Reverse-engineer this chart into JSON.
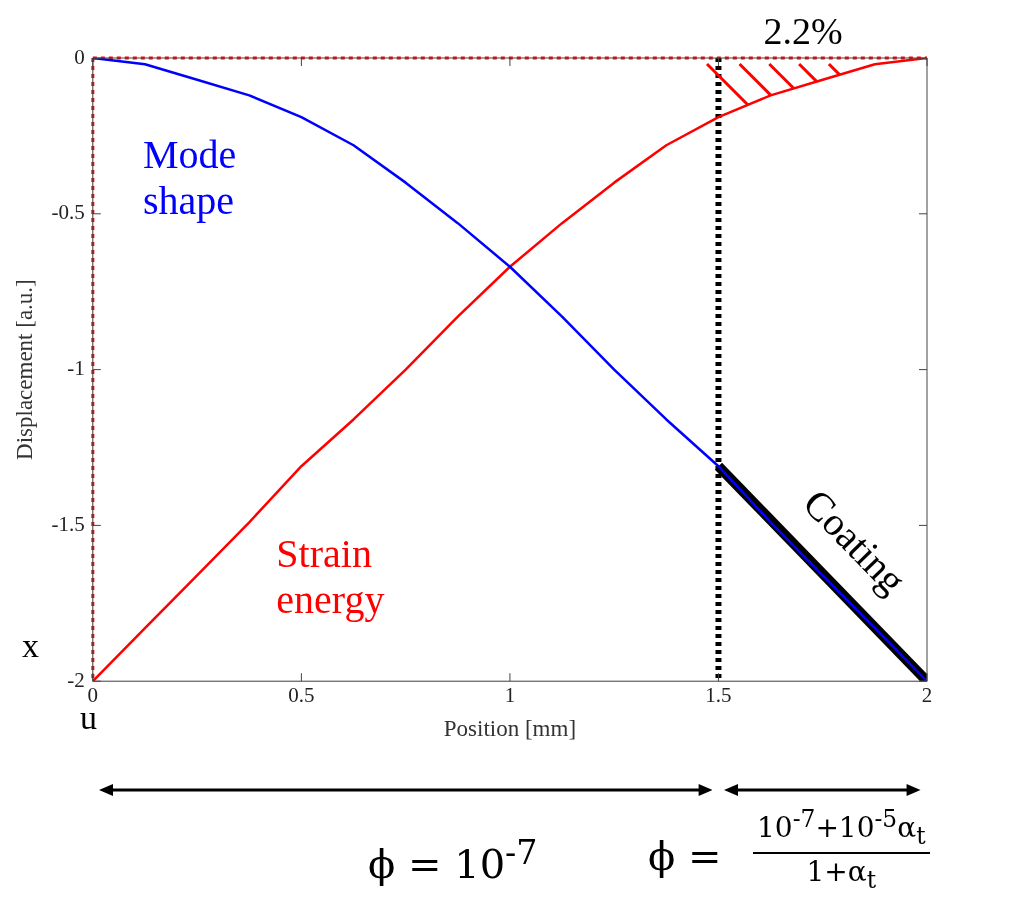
{
  "chart_data": {
    "type": "line",
    "xlabel": "Position [mm]",
    "ylabel": "Displacement [a.u.]",
    "xlim": [
      0,
      2
    ],
    "xticks": [
      0,
      0.5,
      1,
      1.5,
      2
    ],
    "ylim": [
      -2,
      0
    ],
    "yticks": [
      -2,
      -1.5,
      -1,
      -0.5,
      0
    ],
    "grid": false,
    "legend": false,
    "marker": "none",
    "line_style": "solid",
    "series": [
      {
        "name": "Mode shape",
        "color": "#0000ff",
        "x": [
          0,
          0.125,
          0.25,
          0.375,
          0.5,
          0.625,
          0.75,
          0.875,
          1,
          1.125,
          1.25,
          1.375,
          1.5,
          1.625,
          1.75,
          1.875,
          2
        ],
        "values": [
          0,
          -0.02,
          -0.07,
          -0.12,
          -0.19,
          -0.28,
          -0.4,
          -0.53,
          -0.67,
          -0.83,
          -1,
          -1.16,
          -1.31,
          -1.49,
          -1.66,
          -1.83,
          -2
        ]
      },
      {
        "name": "Strain energy",
        "color": "#ff0000",
        "x": [
          0,
          0.125,
          0.25,
          0.375,
          0.5,
          0.625,
          0.75,
          0.875,
          1,
          1.125,
          1.25,
          1.375,
          1.5,
          1.625,
          1.75,
          1.875,
          2
        ],
        "values": [
          -2,
          -1.83,
          -1.66,
          -1.49,
          -1.31,
          -1.16,
          -1,
          -0.83,
          -0.67,
          -0.53,
          -0.4,
          -0.28,
          -0.19,
          -0.12,
          -0.07,
          -0.02,
          0
        ]
      },
      {
        "name": "Coating",
        "color": "#000000",
        "x": [
          1.5,
          2
        ],
        "values": [
          -1.31,
          -2
        ]
      }
    ],
    "ref_lines": [
      {
        "axis": "y",
        "value": 0,
        "color": "#ff0000",
        "line_style": "dotted"
      },
      {
        "axis": "x",
        "value": 0,
        "color": "#ff0000",
        "line_style": "dotted"
      },
      {
        "axis": "x",
        "value": 1.5,
        "color": "#000000",
        "line_style": "dotted"
      }
    ],
    "annotations": [
      "2.2%",
      "x",
      "u",
      "ϕ = 10$^{-7}$",
      "ϕ =",
      "10$^{-7}$+10$^{-5}$α$_{t}$",
      "1+α$_{t}$"
    ]
  }
}
